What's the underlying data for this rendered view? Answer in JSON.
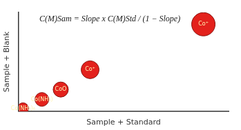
{
  "chart_data": {
    "type": "bubble",
    "annotation": "C(M)Sam = Slope x C(M)Std / (1 − Slope)",
    "x_label": "Sample + Standard",
    "y_label": "Sample + Blank",
    "x": [
      2,
      11,
      20,
      34,
      88
    ],
    "values": [
      3,
      12,
      22,
      42,
      88
    ],
    "sizes": [
      8,
      10,
      11,
      13,
      17
    ],
    "labels": [
      "Co(NH₃)₆",
      "Co(NH₃)",
      "CoO",
      "Co⁺",
      "Co⁺"
    ],
    "color": "#e3211c",
    "xlim": [
      0,
      100
    ],
    "ylim": [
      0,
      100
    ],
    "grid": false,
    "tick_labels": false,
    "data_labels": true
  }
}
